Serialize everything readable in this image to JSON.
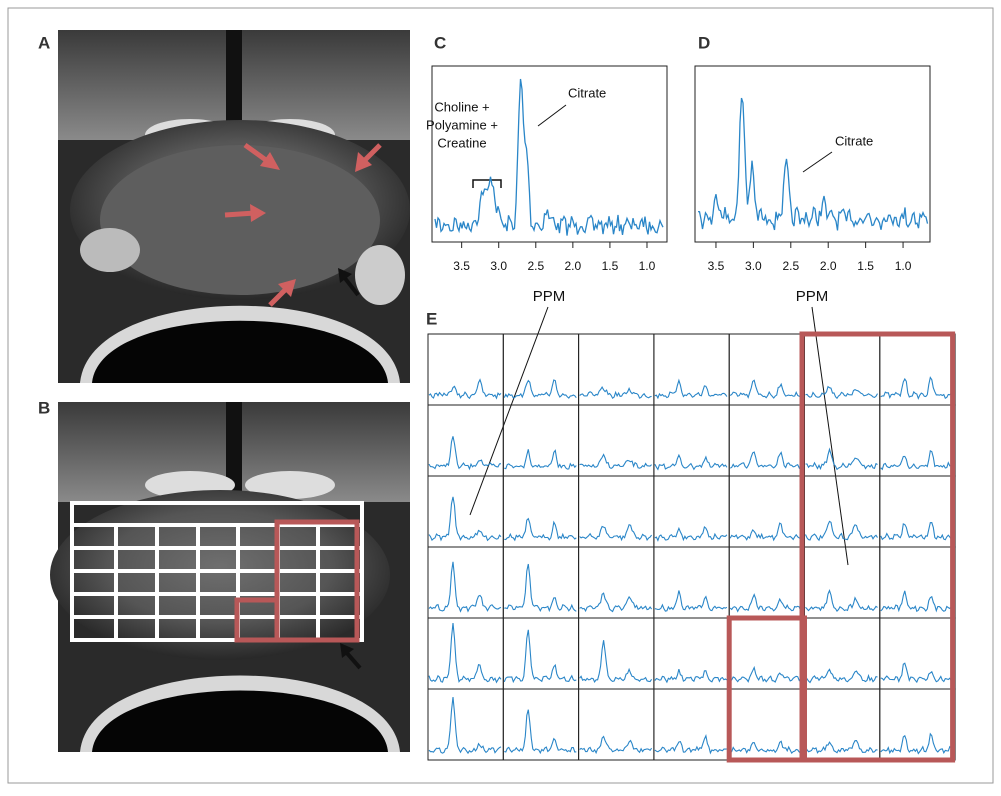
{
  "panel_a": {
    "label": "A"
  },
  "panel_b": {
    "label": "B"
  },
  "panel_c": {
    "label": "C",
    "annotation_lines": [
      "Choline +",
      "Polyamine +",
      "Creatine"
    ],
    "citrate_label": "Citrate",
    "x_axis_label": "PPM",
    "xlim": [
      3.9,
      0.73
    ],
    "xticks": [
      {
        "value": 3.5,
        "label": "3.5"
      },
      {
        "value": 3,
        "label": "3.0"
      },
      {
        "value": 2.5,
        "label": "2.5"
      },
      {
        "value": 2,
        "label": "2.0"
      },
      {
        "value": 1.5,
        "label": "1.5"
      },
      {
        "value": 1,
        "label": "1.0"
      }
    ]
  },
  "panel_d": {
    "label": "D",
    "citrate_label": "Citrate",
    "x_axis_label": "PPM",
    "xlim": [
      3.78,
      0.64
    ],
    "xticks": [
      {
        "value": 3.5,
        "label": "3.5"
      },
      {
        "value": 3,
        "label": "3.0"
      },
      {
        "value": 2.5,
        "label": "2.5"
      },
      {
        "value": 2,
        "label": "2.0"
      },
      {
        "value": 1.5,
        "label": "1.5"
      },
      {
        "value": 1,
        "label": "1.0"
      }
    ]
  },
  "panel_e": {
    "label": "E"
  }
}
